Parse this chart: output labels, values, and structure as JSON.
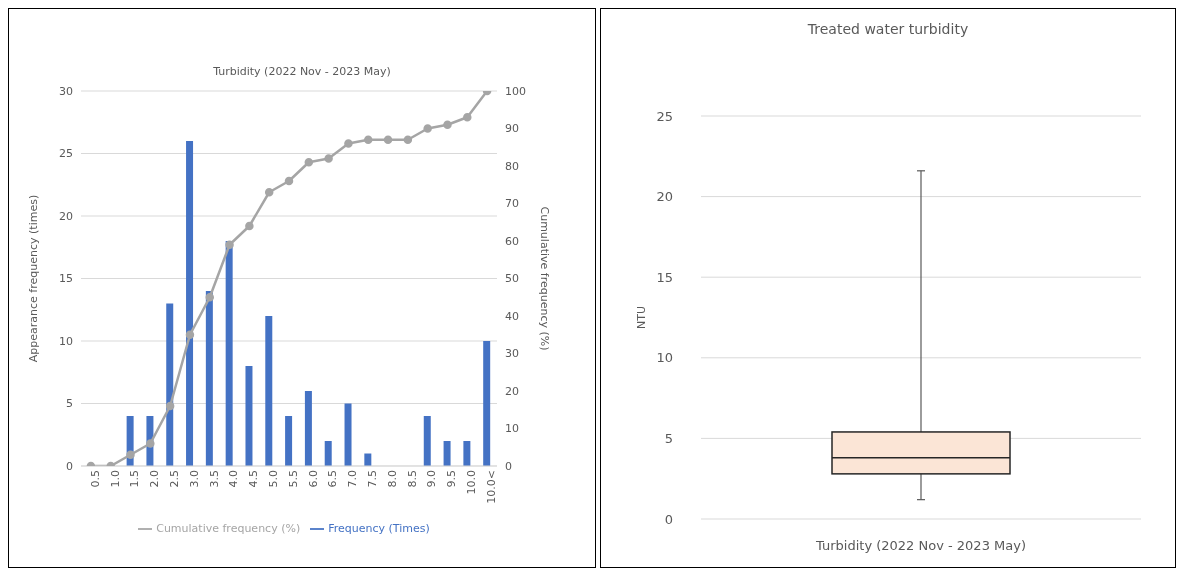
{
  "chart_data": [
    {
      "type": "bar",
      "title": "Turbidity (2022 Nov - 2023 May)",
      "ylabel": "Appearance frequency (times)",
      "y2label": "Cumulative frequency (%)",
      "categories": [
        "0.5",
        "1.0",
        "1.5",
        "2.0",
        "2.5",
        "3.0",
        "3.5",
        "4.0",
        "4.5",
        "5.0",
        "5.5",
        "6.0",
        "6.5",
        "7.0",
        "7.5",
        "8.0",
        "8.5",
        "9.0",
        "9.5",
        "10.0",
        "10.0<"
      ],
      "series": [
        {
          "name": "Frequency (Times)",
          "type": "bar",
          "color": "#4472c4",
          "values": [
            0,
            0,
            4,
            4,
            13,
            26,
            14,
            18,
            8,
            12,
            4,
            6,
            2,
            5,
            1,
            0,
            0,
            4,
            2,
            2,
            10
          ]
        },
        {
          "name": "Cumulative frequency (%)",
          "type": "line",
          "axis": "y2",
          "color": "#a5a5a5",
          "marker": "circle",
          "values": [
            0,
            0,
            3,
            6,
            16,
            35,
            45,
            59,
            64,
            73,
            76,
            81,
            82,
            86,
            87,
            87,
            87,
            90,
            91,
            93,
            100
          ]
        }
      ],
      "ylim": [
        0,
        30
      ],
      "yticks": [
        0,
        5,
        10,
        15,
        20,
        25,
        30
      ],
      "y2lim": [
        0,
        100
      ],
      "y2ticks": [
        0,
        10,
        20,
        30,
        40,
        50,
        60,
        70,
        80,
        90,
        100
      ],
      "grid": "y",
      "legend": "bottom"
    },
    {
      "type": "box",
      "title": "Treated water turbidity",
      "ylabel": "NTU",
      "categories": [
        "Turbidity (2022 Nov - 2023 May)"
      ],
      "boxes": [
        {
          "low": 1.2,
          "q1": 2.8,
          "median": 3.8,
          "q3": 5.4,
          "high": 21.6
        }
      ],
      "color": "#fbe5d6",
      "ylim": [
        0,
        25
      ],
      "yticks": [
        0,
        5,
        10,
        15,
        20,
        25
      ],
      "grid": "y"
    }
  ]
}
